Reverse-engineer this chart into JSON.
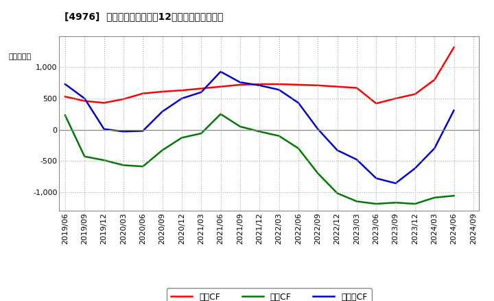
{
  "title": "[4976]  キャッシュフローの12か月移動合計の推移",
  "ylabel": "（百万円）",
  "background_color": "#ffffff",
  "dates": [
    "2019/06",
    "2019/09",
    "2019/12",
    "2020/03",
    "2020/06",
    "2020/09",
    "2020/12",
    "2021/03",
    "2021/06",
    "2021/09",
    "2021/12",
    "2022/03",
    "2022/06",
    "2022/09",
    "2022/12",
    "2023/03",
    "2023/06",
    "2023/09",
    "2023/12",
    "2024/03",
    "2024/06",
    "2024/09"
  ],
  "operating_cf": [
    530,
    460,
    430,
    490,
    580,
    610,
    630,
    660,
    690,
    720,
    730,
    730,
    720,
    710,
    690,
    670,
    420,
    500,
    570,
    800,
    1320,
    null
  ],
  "investing_cf": [
    230,
    -430,
    -490,
    -570,
    -590,
    -330,
    -130,
    -60,
    250,
    50,
    -30,
    -100,
    -300,
    -700,
    -1020,
    -1150,
    -1190,
    -1170,
    -1190,
    -1090,
    -1060,
    null
  ],
  "free_cf": [
    730,
    500,
    10,
    -30,
    -20,
    290,
    500,
    600,
    930,
    760,
    710,
    640,
    430,
    10,
    -330,
    -480,
    -780,
    -860,
    -620,
    -300,
    310,
    null
  ],
  "ylim": [
    -1300,
    1500
  ],
  "yticks": [
    -1000,
    -500,
    0,
    500,
    1000
  ],
  "line_colors": {
    "operating": "#ff0000",
    "investing": "#007700",
    "free": "#0000cc"
  },
  "legend_labels": [
    "営業CF",
    "投資CF",
    "フリーCF"
  ]
}
